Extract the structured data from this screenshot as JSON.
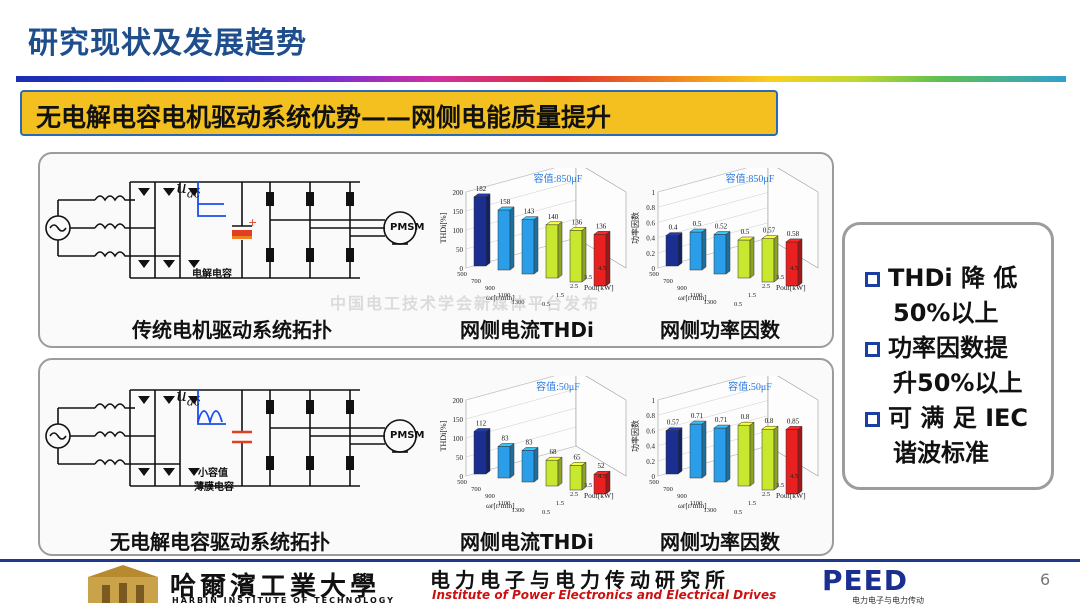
{
  "page_title": "研究现状及发展趋势",
  "subtitle": "无电解电容电机驱动系统优势——网侧电能质量提升",
  "top_panel": {
    "circuit_caption": "传统电机驱动系统拓扑",
    "cap_label": "电解电容",
    "voltage_label": "u",
    "voltage_sub": "dc",
    "motor_label": "PMSM",
    "plus_sign": "+",
    "chart1_caption": "网侧电流THDi",
    "chart2_caption": "网侧功率因数"
  },
  "bottom_panel": {
    "circuit_caption": "无电解电容驱动系统拓扑",
    "cap_label_1": "小容值",
    "cap_label_2": "薄膜电容",
    "voltage_label": "u",
    "voltage_sub": "dc",
    "motor_label": "PMSM",
    "chart1_caption": "网侧电流THDi",
    "chart2_caption": "网侧功率因数"
  },
  "benefits": {
    "b1_line1": "THDi 降 低",
    "b1_line2": "50%以上",
    "b2_line1": "功率因数提",
    "b2_line2": "升50%以上",
    "b3_line1": "可 满 足 IEC",
    "b3_line2": "谐波标准"
  },
  "footer": {
    "university_cn": "哈爾濱工業大學",
    "university_en": "HARBIN INSTITUTE OF TECHNOLOGY",
    "institute_cn": "电力电子与电力传动研究所",
    "institute_en": "Institute of Power Electronics and Electrical Drives",
    "brand": "PEED",
    "brand_sub": "电力电子与电力传动",
    "page_number": "6"
  },
  "watermark": "中国电工技术学会新媒体平台发布",
  "colors": {
    "title": "#1f4e8c",
    "subtitle_bg": "#f4c020",
    "navy": "#1a2f8f",
    "sky": "#2a9ee8",
    "lime": "#c8e830",
    "red": "#e82020"
  },
  "chart_data": [
    {
      "type": "bar",
      "title": "容值:850μF",
      "ylabel": "THDi[%]",
      "ylim": [
        0,
        200
      ],
      "yticks": [
        "0",
        "50",
        "100",
        "150",
        "200"
      ],
      "xlabel": "ωr[r/min]",
      "xticks": [
        "500",
        "700",
        "900",
        "1100",
        "1300"
      ],
      "zlabel": "Pout[kW]",
      "zticks": [
        "0.5",
        "1.5",
        "2.5",
        "3.5",
        "4.5"
      ],
      "values": [
        182,
        158,
        143,
        140,
        136,
        136
      ],
      "labels": [
        "182",
        "158",
        "143",
        "140",
        "136",
        "136"
      ],
      "colors": [
        "navy",
        "sky",
        "sky",
        "lime",
        "lime",
        "red"
      ]
    },
    {
      "type": "bar",
      "title": "容值:850μF",
      "ylabel": "功率因数",
      "ylim": [
        0,
        1
      ],
      "yticks": [
        "0",
        "0.2",
        "0.4",
        "0.6",
        "0.8",
        "1"
      ],
      "xlabel": "ωr[r/min]",
      "xticks": [
        "500",
        "700",
        "900",
        "1100",
        "1300"
      ],
      "zlabel": "Pout[kW]",
      "zticks": [
        "0.5",
        "1.5",
        "2.5",
        "3.5",
        "4.5"
      ],
      "values": [
        0.4,
        0.5,
        0.52,
        0.5,
        0.57,
        0.58
      ],
      "labels": [
        "0.4",
        "0.5",
        "0.52",
        "0.5",
        "0.57",
        "0.58"
      ],
      "colors": [
        "navy",
        "sky",
        "sky",
        "lime",
        "lime",
        "red"
      ]
    },
    {
      "type": "bar",
      "title": "容值:50μF",
      "ylabel": "THDi[%]",
      "ylim": [
        0,
        200
      ],
      "yticks": [
        "0",
        "50",
        "100",
        "150",
        "200"
      ],
      "xlabel": "ωr[r/min]",
      "xticks": [
        "500",
        "700",
        "900",
        "1100",
        "1300"
      ],
      "zlabel": "Pout[kW]",
      "zticks": [
        "0.5",
        "1.5",
        "2.5",
        "3.5",
        "4.5"
      ],
      "values": [
        112,
        83,
        83,
        68,
        65,
        52
      ],
      "labels": [
        "112",
        "83",
        "83",
        "68",
        "65",
        "52"
      ],
      "colors": [
        "navy",
        "sky",
        "sky",
        "lime",
        "lime",
        "red"
      ]
    },
    {
      "type": "bar",
      "title": "容值:50μF",
      "ylabel": "功率因数",
      "ylim": [
        0,
        1
      ],
      "yticks": [
        "0",
        "0.2",
        "0.4",
        "0.6",
        "0.8",
        "1"
      ],
      "xlabel": "ωr[r/min]",
      "xticks": [
        "500",
        "700",
        "900",
        "1100",
        "1300"
      ],
      "zlabel": "Pout[kW]",
      "zticks": [
        "0.5",
        "1.5",
        "2.5",
        "3.5",
        "4.5"
      ],
      "values": [
        0.57,
        0.71,
        0.71,
        0.8,
        0.8,
        0.85
      ],
      "labels": [
        "0.57",
        "0.71",
        "0.71",
        "0.8",
        "0.8",
        "0.85"
      ],
      "colors": [
        "navy",
        "sky",
        "sky",
        "lime",
        "lime",
        "red"
      ]
    }
  ]
}
